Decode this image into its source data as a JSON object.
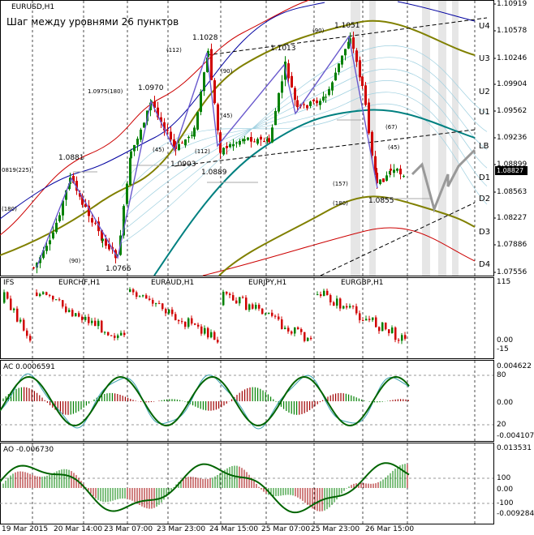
{
  "symbol_title": "EURUSD,H1",
  "subtitle": "Шаг между уровнями 26 пунктов",
  "price_axis": [
    "1.10919",
    "1.10578",
    "1.10246",
    "1.09904",
    "1.09562",
    "1.09236",
    "1.08899",
    "1.08563",
    "1.08227",
    "1.07886",
    "1.07556"
  ],
  "current_price": "1.08827",
  "level_labels": [
    "U4",
    "U3",
    "U2",
    "U1",
    "LB",
    "D1",
    "D2",
    "D3",
    "D4"
  ],
  "swing_labels": [
    "1.1028",
    "1.1013",
    "1.1051",
    "1.0970",
    "1.0975(180)",
    "1.0881",
    "1.0903",
    "1.0889",
    "1.0855",
    "1.0766",
    "0819(225)",
    "(180)",
    "(112)",
    "(90)",
    "(45)",
    "(112)",
    "(67)",
    "(45)",
    "(157)",
    "(180)",
    "(90)",
    "(90)",
    "(45)"
  ],
  "multi_panel": {
    "label": "IFS",
    "pairs": [
      "EURCHF,H1",
      "EURAUD,H1",
      "EURJPY,H1",
      "EURGBP,H1"
    ],
    "axis": [
      "115",
      "0.00",
      "-15"
    ]
  },
  "ac_panel": {
    "label": "AC 0.0006591",
    "axis": [
      "0.004622",
      "80",
      "0.00",
      "20",
      "-0.004107"
    ]
  },
  "ao_panel": {
    "label": "AO -0.006730",
    "axis": [
      "0.013531",
      "100",
      "0.00",
      "-100",
      "-0.009284"
    ]
  },
  "time_axis": [
    "19 Mar 2015",
    "20 Mar 14:00",
    "23 Mar 07:00",
    "23 Mar 23:00",
    "24 Mar 15:00",
    "25 Mar 07:00",
    "25 Mar 23:00",
    "26 Mar 15:00"
  ],
  "colors": {
    "bull": "#008000",
    "bear": "#d00000",
    "pattern": "#6a5acd",
    "ma_long": "#808000",
    "ma_mid": "#008080",
    "envelope_red": "#cc0000",
    "envelope_blue": "#0000a0"
  }
}
